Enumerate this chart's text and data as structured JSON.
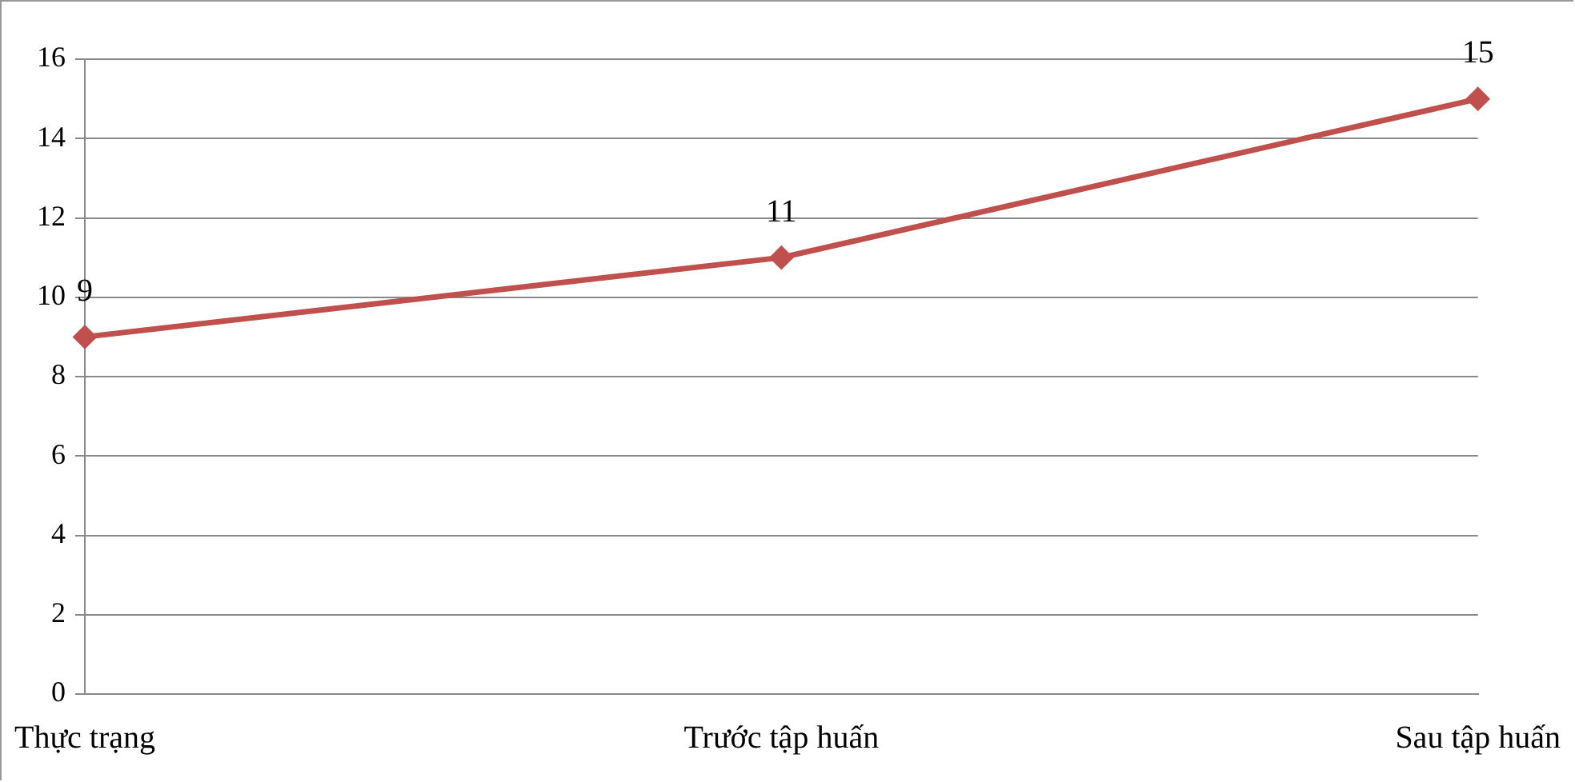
{
  "chart_data": {
    "type": "line",
    "categories": [
      "Thực trạng",
      "Trước tập huấn",
      "Sau tập huấn"
    ],
    "series": [
      {
        "color": "#c0504d",
        "values": [
          9,
          11,
          15
        ]
      }
    ],
    "ylim": [
      0,
      16
    ],
    "yticks": [
      0,
      2,
      4,
      6,
      8,
      10,
      12,
      14,
      16
    ],
    "grid": "y",
    "legend": false,
    "marker": "diamond",
    "line_style": "solid",
    "data_labels": true
  }
}
